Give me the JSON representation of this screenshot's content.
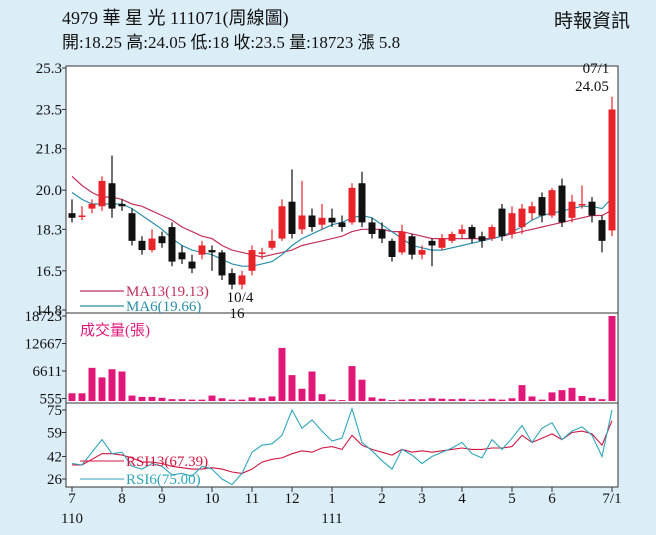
{
  "header": {
    "title": "4979  華 星 光 111071(周線圖)",
    "summary": "開:18.25 高:24.05 低:18 收:23.5 量:18723 漲 5.8",
    "source": "時報資訊"
  },
  "chart_data": [
    {
      "type": "candlestick",
      "title": "4979  華 星 光 111071(周線圖)",
      "ylim": [
        14.8,
        25.3
      ],
      "yticks": [
        "25.3",
        "23.5",
        "21.8",
        "20.0",
        "18.3",
        "16.5",
        "14.8"
      ],
      "colors": {
        "up": "#e8232a",
        "down": "#111111",
        "ma13": "#c0305a",
        "ma6": "#2a8fa8"
      },
      "candles": [
        [
          19.0,
          18.8,
          19.6,
          18.6
        ],
        [
          18.9,
          18.9,
          19.3,
          18.7
        ],
        [
          19.2,
          19.4,
          19.6,
          19.0
        ],
        [
          19.3,
          20.4,
          20.6,
          19.1
        ],
        [
          20.3,
          19.2,
          21.5,
          18.8
        ],
        [
          19.4,
          19.3,
          19.6,
          19.1
        ],
        [
          19.0,
          17.8,
          19.2,
          17.6
        ],
        [
          17.8,
          17.4,
          18.0,
          17.2
        ],
        [
          17.4,
          17.9,
          18.3,
          17.3
        ],
        [
          18.0,
          17.7,
          18.2,
          17.5
        ],
        [
          18.4,
          16.9,
          18.6,
          16.7
        ],
        [
          17.3,
          17.0,
          17.6,
          16.8
        ],
        [
          16.9,
          16.6,
          17.2,
          16.4
        ],
        [
          17.2,
          17.6,
          17.8,
          17.0
        ],
        [
          17.4,
          17.3,
          17.6,
          16.5
        ],
        [
          17.3,
          16.3,
          17.4,
          16.1
        ],
        [
          16.4,
          15.9,
          16.6,
          15.7
        ],
        [
          15.9,
          16.3,
          16.5,
          15.7
        ],
        [
          16.5,
          17.4,
          17.6,
          16.3
        ],
        [
          17.3,
          17.3,
          17.5,
          17.0
        ],
        [
          17.5,
          17.8,
          18.3,
          17.4
        ],
        [
          17.9,
          19.3,
          19.6,
          17.8
        ],
        [
          19.5,
          18.1,
          20.9,
          17.9
        ],
        [
          18.3,
          18.9,
          20.4,
          18.1
        ],
        [
          18.9,
          18.4,
          19.2,
          18.2
        ],
        [
          18.5,
          18.8,
          19.4,
          18.3
        ],
        [
          18.8,
          18.6,
          19.2,
          18.4
        ],
        [
          18.6,
          18.4,
          18.9,
          18.2
        ],
        [
          18.6,
          20.1,
          20.3,
          18.5
        ],
        [
          20.3,
          18.6,
          20.8,
          18.4
        ],
        [
          18.6,
          18.1,
          18.8,
          17.9
        ],
        [
          18.3,
          17.9,
          18.6,
          17.7
        ],
        [
          17.8,
          17.1,
          17.9,
          16.9
        ],
        [
          17.3,
          18.2,
          18.5,
          17.2
        ],
        [
          18.0,
          17.2,
          18.1,
          17.0
        ],
        [
          17.2,
          17.4,
          17.6,
          17.0
        ],
        [
          17.8,
          17.6,
          17.9,
          16.7
        ],
        [
          17.5,
          17.9,
          18.1,
          17.4
        ],
        [
          17.8,
          18.1,
          18.2,
          17.7
        ],
        [
          18.1,
          18.3,
          18.5,
          17.9
        ],
        [
          18.4,
          17.9,
          18.5,
          17.7
        ],
        [
          18.0,
          17.8,
          18.2,
          17.5
        ],
        [
          17.9,
          18.4,
          18.5,
          17.8
        ],
        [
          19.2,
          18.0,
          19.4,
          17.8
        ],
        [
          18.1,
          19.0,
          19.3,
          17.9
        ],
        [
          18.4,
          19.2,
          19.4,
          18.1
        ],
        [
          19.0,
          19.3,
          19.5,
          18.7
        ],
        [
          19.7,
          18.9,
          19.9,
          18.6
        ],
        [
          18.9,
          20.0,
          20.1,
          18.8
        ],
        [
          20.2,
          18.6,
          20.5,
          18.4
        ],
        [
          18.8,
          19.5,
          19.8,
          18.6
        ],
        [
          19.4,
          19.4,
          20.2,
          19.2
        ],
        [
          19.5,
          18.9,
          19.7,
          18.6
        ],
        [
          18.7,
          17.8,
          18.9,
          17.3
        ],
        [
          18.25,
          23.5,
          24.05,
          18.0
        ]
      ],
      "series": [
        {
          "name": "MA13(19.13)",
          "values": [
            20.6,
            20.2,
            19.9,
            19.7,
            19.7,
            19.6,
            19.4,
            19.3,
            19.1,
            18.9,
            18.7,
            18.4,
            18.2,
            18.0,
            17.9,
            17.6,
            17.4,
            17.3,
            17.2,
            17.1,
            17.2,
            17.3,
            17.4,
            17.6,
            17.7,
            17.8,
            17.9,
            18.0,
            18.2,
            18.3,
            18.3,
            18.3,
            18.2,
            18.2,
            18.1,
            18.0,
            17.9,
            17.9,
            17.9,
            17.9,
            17.9,
            17.9,
            17.9,
            18.0,
            18.1,
            18.2,
            18.3,
            18.4,
            18.5,
            18.6,
            18.7,
            18.8,
            18.9,
            18.9,
            19.13
          ]
        },
        {
          "name": "MA6(19.66)",
          "values": [
            19.9,
            19.6,
            19.4,
            19.4,
            19.4,
            19.4,
            19.2,
            18.9,
            18.6,
            18.3,
            17.9,
            17.6,
            17.4,
            17.3,
            17.2,
            17.0,
            16.8,
            16.7,
            16.7,
            16.8,
            16.9,
            17.2,
            17.6,
            17.9,
            18.1,
            18.3,
            18.5,
            18.6,
            18.8,
            18.9,
            18.8,
            18.5,
            18.2,
            17.9,
            17.6,
            17.5,
            17.4,
            17.4,
            17.5,
            17.6,
            17.7,
            17.8,
            17.9,
            18.0,
            18.2,
            18.4,
            18.7,
            18.9,
            19.0,
            19.1,
            19.2,
            19.3,
            19.3,
            19.2,
            19.66
          ]
        }
      ],
      "annotations": [
        {
          "text": "10/4",
          "label": "16"
        },
        {
          "text": "07/1",
          "label": "24.05"
        }
      ]
    },
    {
      "type": "bar",
      "title": "成交量(張)",
      "yticks": [
        "18723",
        "12667",
        "6611",
        "555"
      ],
      "ylim": [
        555,
        18723
      ],
      "values": [
        1700,
        1700,
        7300,
        5200,
        7000,
        6500,
        1200,
        900,
        900,
        700,
        400,
        400,
        300,
        300,
        1200,
        600,
        300,
        300,
        800,
        600,
        1000,
        11700,
        5700,
        2700,
        6500,
        1500,
        300,
        200,
        7700,
        4700,
        800,
        500,
        200,
        300,
        400,
        400,
        600,
        500,
        400,
        500,
        300,
        300,
        500,
        300,
        600,
        3500,
        1000,
        300,
        1900,
        2400,
        2900,
        1100,
        700,
        400,
        18723
      ]
    },
    {
      "type": "line",
      "title": "RSI",
      "yticks": [
        "75",
        "59",
        "42",
        "26"
      ],
      "ylim": [
        26,
        75
      ],
      "series": [
        {
          "name": "RSI13(67.39)",
          "values": [
            36,
            36,
            40,
            44,
            44,
            43,
            41,
            38,
            38,
            37,
            35,
            34,
            33,
            33,
            34,
            33,
            31,
            30,
            33,
            38,
            40,
            41,
            44,
            46,
            45,
            48,
            49,
            47,
            57,
            50,
            47,
            45,
            43,
            47,
            45,
            46,
            45,
            46,
            47,
            48,
            47,
            47,
            48,
            48,
            49,
            57,
            52,
            55,
            58,
            54,
            59,
            60,
            58,
            50,
            67.39
          ]
        },
        {
          "name": "RSI6(75.00)",
          "values": [
            37,
            36,
            45,
            54,
            44,
            45,
            35,
            33,
            37,
            35,
            29,
            30,
            28,
            35,
            33,
            26,
            22,
            30,
            45,
            50,
            51,
            57,
            75,
            62,
            68,
            60,
            53,
            55,
            76,
            52,
            46,
            39,
            33,
            47,
            43,
            37,
            42,
            45,
            48,
            52,
            44,
            41,
            54,
            47,
            55,
            64,
            52,
            62,
            66,
            54,
            60,
            63,
            57,
            42,
            75.0
          ]
        }
      ]
    }
  ],
  "xaxis": {
    "months": [
      "7",
      "8",
      "9",
      "10",
      "11",
      "12",
      "1",
      "2",
      "3",
      "4",
      "5",
      "6",
      "7/1"
    ],
    "years": [
      "110",
      "111"
    ]
  }
}
